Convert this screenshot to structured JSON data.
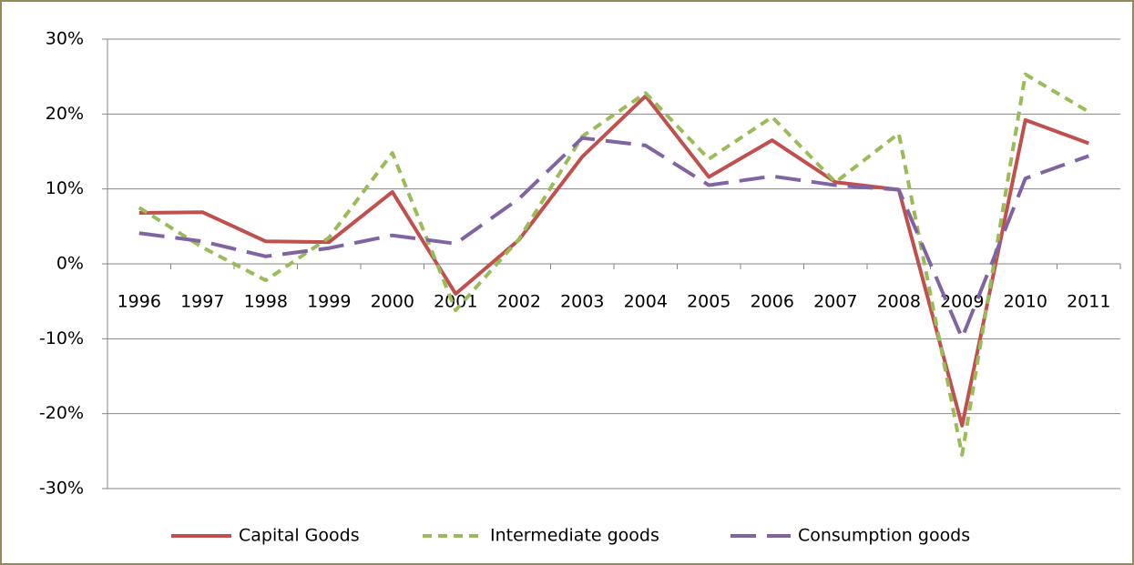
{
  "chart_data": {
    "type": "line",
    "categories": [
      "1996",
      "1997",
      "1998",
      "1999",
      "2000",
      "2001",
      "2002",
      "2003",
      "2004",
      "2005",
      "2006",
      "2007",
      "2008",
      "2009",
      "2010",
      "2011"
    ],
    "series": [
      {
        "name": "Capital Goods",
        "color": "#c0504d",
        "line_style": "solid",
        "values": [
          6.8,
          6.9,
          3.0,
          2.9,
          9.6,
          -4.0,
          3.2,
          14.3,
          22.4,
          11.6,
          16.5,
          10.9,
          9.9,
          -21.6,
          19.2,
          16.1
        ]
      },
      {
        "name": "Intermediate goods",
        "color": "#9bbb59",
        "line_style": "short-dash",
        "values": [
          7.5,
          2.2,
          -2.2,
          3.5,
          14.8,
          -6.2,
          3.3,
          17.0,
          22.8,
          14.0,
          19.6,
          10.9,
          17.4,
          -25.5,
          25.3,
          20.3
        ]
      },
      {
        "name": "Consumption goods",
        "color": "#8064a2",
        "line_style": "long-dash",
        "values": [
          4.1,
          3.0,
          1.0,
          2.1,
          3.8,
          2.7,
          8.7,
          16.8,
          15.8,
          10.5,
          11.7,
          10.5,
          9.9,
          -9.9,
          11.4,
          14.4
        ]
      }
    ],
    "ylim": [
      -30,
      30
    ],
    "yticks": [
      {
        "value": -30,
        "label": "-30%"
      },
      {
        "value": -20,
        "label": "-20%"
      },
      {
        "value": -10,
        "label": "-10%"
      },
      {
        "value": 0,
        "label": "0%"
      },
      {
        "value": 10,
        "label": "10%"
      },
      {
        "value": 20,
        "label": "20%"
      },
      {
        "value": 30,
        "label": "30%"
      }
    ],
    "grid": true,
    "legend": "bottom"
  }
}
